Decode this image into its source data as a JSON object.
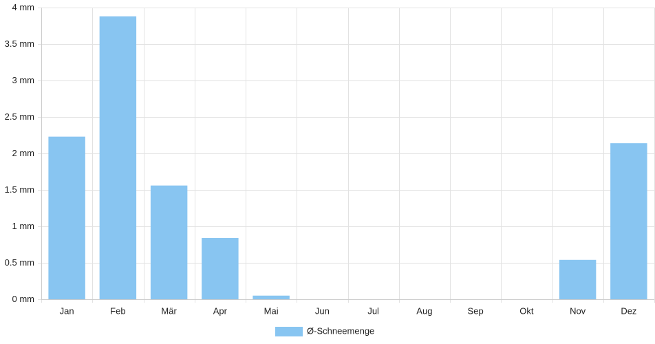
{
  "chart_data": {
    "type": "bar",
    "categories": [
      "Jan",
      "Feb",
      "Mär",
      "Apr",
      "Mai",
      "Jun",
      "Jul",
      "Aug",
      "Sep",
      "Okt",
      "Nov",
      "Dez"
    ],
    "series": [
      {
        "name": "Ø-Schneemenge",
        "color": "#88c5f1",
        "values": [
          2.23,
          3.88,
          1.56,
          0.84,
          0.05,
          0,
          0,
          0,
          0,
          0,
          0.54,
          2.14
        ]
      }
    ],
    "ylim": [
      0,
      4
    ],
    "yticks": [
      {
        "value": 0,
        "label": "0 mm"
      },
      {
        "value": 0.5,
        "label": "0.5 mm"
      },
      {
        "value": 1,
        "label": "1 mm"
      },
      {
        "value": 1.5,
        "label": "1.5 mm"
      },
      {
        "value": 2,
        "label": "2 mm"
      },
      {
        "value": 2.5,
        "label": "2.5 mm"
      },
      {
        "value": 3,
        "label": "3 mm"
      },
      {
        "value": 3.5,
        "label": "3.5 mm"
      },
      {
        "value": 4,
        "label": "4 mm"
      }
    ],
    "grid": true,
    "legend": "bottom"
  }
}
